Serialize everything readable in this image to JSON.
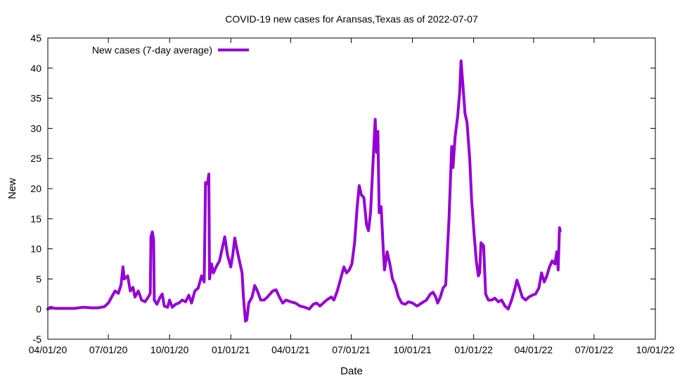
{
  "chart_data": {
    "type": "line",
    "title": "COVID-19 new cases for Aransas,Texas as of 2022-07-07",
    "xlabel": "Date",
    "ylabel": "New",
    "ylim": [
      -5,
      45
    ],
    "yticks": [
      -5,
      0,
      5,
      10,
      15,
      20,
      25,
      30,
      35,
      40,
      45
    ],
    "xlim": [
      "2020-04-01",
      "2022-10-01"
    ],
    "xticks": [
      {
        "date": "2020-04-01",
        "label": "04/01/20"
      },
      {
        "date": "2020-07-01",
        "label": "07/01/20"
      },
      {
        "date": "2020-10-01",
        "label": "10/01/20"
      },
      {
        "date": "2021-01-01",
        "label": "01/01/21"
      },
      {
        "date": "2021-04-01",
        "label": "04/01/21"
      },
      {
        "date": "2021-07-01",
        "label": "07/01/21"
      },
      {
        "date": "2021-10-01",
        "label": "10/01/21"
      },
      {
        "date": "2022-01-01",
        "label": "01/01/22"
      },
      {
        "date": "2022-04-01",
        "label": "04/01/22"
      },
      {
        "date": "2022-07-01",
        "label": "07/01/22"
      },
      {
        "date": "2022-10-01",
        "label": "10/01/22"
      }
    ],
    "grid": false,
    "legend_position": "top-left",
    "series": [
      {
        "name": "New cases (7-day average)",
        "color": "#9400d3",
        "points": [
          [
            "2020-04-01",
            0.0
          ],
          [
            "2020-04-05",
            0.3
          ],
          [
            "2020-04-12",
            0.1
          ],
          [
            "2020-04-25",
            0.1
          ],
          [
            "2020-05-10",
            0.1
          ],
          [
            "2020-05-25",
            0.3
          ],
          [
            "2020-06-05",
            0.2
          ],
          [
            "2020-06-15",
            0.2
          ],
          [
            "2020-06-25",
            0.4
          ],
          [
            "2020-07-01",
            1.0
          ],
          [
            "2020-07-06",
            2.0
          ],
          [
            "2020-07-11",
            3.0
          ],
          [
            "2020-07-16",
            2.6
          ],
          [
            "2020-07-20",
            4.0
          ],
          [
            "2020-07-23",
            7.0
          ],
          [
            "2020-07-25",
            5.0
          ],
          [
            "2020-07-30",
            5.5
          ],
          [
            "2020-08-03",
            3.0
          ],
          [
            "2020-08-07",
            3.6
          ],
          [
            "2020-08-10",
            2.0
          ],
          [
            "2020-08-15",
            3.0
          ],
          [
            "2020-08-20",
            1.5
          ],
          [
            "2020-08-25",
            1.2
          ],
          [
            "2020-08-30",
            2.0
          ],
          [
            "2020-09-02",
            2.6
          ],
          [
            "2020-09-03",
            12.0
          ],
          [
            "2020-09-05",
            12.8
          ],
          [
            "2020-09-07",
            11.5
          ],
          [
            "2020-09-08",
            1.5
          ],
          [
            "2020-09-12",
            0.8
          ],
          [
            "2020-09-17",
            2.0
          ],
          [
            "2020-09-20",
            2.5
          ],
          [
            "2020-09-23",
            0.5
          ],
          [
            "2020-09-28",
            0.3
          ],
          [
            "2020-10-01",
            1.5
          ],
          [
            "2020-10-05",
            0.3
          ],
          [
            "2020-10-10",
            0.8
          ],
          [
            "2020-10-15",
            1.0
          ],
          [
            "2020-10-20",
            1.5
          ],
          [
            "2020-10-25",
            1.2
          ],
          [
            "2020-10-30",
            2.3
          ],
          [
            "2020-11-03",
            1.0
          ],
          [
            "2020-11-08",
            3.0
          ],
          [
            "2020-11-13",
            3.5
          ],
          [
            "2020-11-18",
            5.5
          ],
          [
            "2020-11-22",
            4.5
          ],
          [
            "2020-11-24",
            21.0
          ],
          [
            "2020-11-27",
            20.8
          ],
          [
            "2020-11-29",
            22.4
          ],
          [
            "2020-11-30",
            5.0
          ],
          [
            "2020-12-03",
            7.5
          ],
          [
            "2020-12-06",
            6.0
          ],
          [
            "2020-12-10",
            7.0
          ],
          [
            "2020-12-15",
            8.0
          ],
          [
            "2020-12-19",
            10.0
          ],
          [
            "2020-12-23",
            12.0
          ],
          [
            "2020-12-27",
            9.0
          ],
          [
            "2021-01-01",
            7.0
          ],
          [
            "2021-01-04",
            9.0
          ],
          [
            "2021-01-07",
            11.8
          ],
          [
            "2021-01-10",
            10.0
          ],
          [
            "2021-01-14",
            8.0
          ],
          [
            "2021-01-18",
            6.0
          ],
          [
            "2021-01-20",
            2.0
          ],
          [
            "2021-01-23",
            -2.0
          ],
          [
            "2021-01-25",
            -1.8
          ],
          [
            "2021-01-28",
            1.0
          ],
          [
            "2021-02-02",
            2.0
          ],
          [
            "2021-02-06",
            3.9
          ],
          [
            "2021-02-10",
            3.0
          ],
          [
            "2021-02-15",
            1.5
          ],
          [
            "2021-02-20",
            1.5
          ],
          [
            "2021-02-25",
            2.0
          ],
          [
            "2021-03-01",
            2.5
          ],
          [
            "2021-03-05",
            3.0
          ],
          [
            "2021-03-10",
            3.2
          ],
          [
            "2021-03-15",
            2.0
          ],
          [
            "2021-03-20",
            1.0
          ],
          [
            "2021-03-25",
            1.5
          ],
          [
            "2021-04-01",
            1.2
          ],
          [
            "2021-04-08",
            1.0
          ],
          [
            "2021-04-15",
            0.5
          ],
          [
            "2021-04-22",
            0.3
          ],
          [
            "2021-04-29",
            0.0
          ],
          [
            "2021-05-05",
            0.8
          ],
          [
            "2021-05-10",
            1.0
          ],
          [
            "2021-05-15",
            0.5
          ],
          [
            "2021-05-20",
            1.0
          ],
          [
            "2021-05-25",
            1.5
          ],
          [
            "2021-06-01",
            2.0
          ],
          [
            "2021-06-05",
            1.5
          ],
          [
            "2021-06-10",
            3.0
          ],
          [
            "2021-06-15",
            5.0
          ],
          [
            "2021-06-20",
            7.0
          ],
          [
            "2021-06-24",
            6.0
          ],
          [
            "2021-06-28",
            6.5
          ],
          [
            "2021-07-02",
            7.5
          ],
          [
            "2021-07-06",
            11.0
          ],
          [
            "2021-07-10",
            17.0
          ],
          [
            "2021-07-13",
            20.5
          ],
          [
            "2021-07-16",
            19.0
          ],
          [
            "2021-07-20",
            18.5
          ],
          [
            "2021-07-24",
            14.0
          ],
          [
            "2021-07-27",
            13.0
          ],
          [
            "2021-07-30",
            16.0
          ],
          [
            "2021-08-03",
            25.0
          ],
          [
            "2021-08-06",
            31.5
          ],
          [
            "2021-08-08",
            26.0
          ],
          [
            "2021-08-10",
            29.5
          ],
          [
            "2021-08-12",
            16.0
          ],
          [
            "2021-08-15",
            17.0
          ],
          [
            "2021-08-18",
            10.0
          ],
          [
            "2021-08-20",
            6.5
          ],
          [
            "2021-08-24",
            9.5
          ],
          [
            "2021-08-28",
            7.5
          ],
          [
            "2021-09-01",
            5.0
          ],
          [
            "2021-09-05",
            4.0
          ],
          [
            "2021-09-10",
            2.0
          ],
          [
            "2021-09-15",
            1.0
          ],
          [
            "2021-09-20",
            0.8
          ],
          [
            "2021-09-25",
            1.2
          ],
          [
            "2021-10-01",
            1.0
          ],
          [
            "2021-10-08",
            0.5
          ],
          [
            "2021-10-15",
            1.0
          ],
          [
            "2021-10-22",
            1.5
          ],
          [
            "2021-10-28",
            2.5
          ],
          [
            "2021-11-01",
            2.8
          ],
          [
            "2021-11-05",
            2.0
          ],
          [
            "2021-11-08",
            1.0
          ],
          [
            "2021-11-12",
            2.0
          ],
          [
            "2021-11-16",
            3.5
          ],
          [
            "2021-11-20",
            4.0
          ],
          [
            "2021-11-25",
            15.0
          ],
          [
            "2021-11-29",
            27.0
          ],
          [
            "2021-12-01",
            23.5
          ],
          [
            "2021-12-04",
            28.5
          ],
          [
            "2021-12-08",
            32.0
          ],
          [
            "2021-12-11",
            36.0
          ],
          [
            "2021-12-13",
            41.2
          ],
          [
            "2021-12-16",
            37.0
          ],
          [
            "2021-12-19",
            32.5
          ],
          [
            "2021-12-22",
            31.0
          ],
          [
            "2021-12-26",
            25.0
          ],
          [
            "2021-12-29",
            18.0
          ],
          [
            "2022-01-02",
            12.0
          ],
          [
            "2022-01-05",
            8.0
          ],
          [
            "2022-01-08",
            5.5
          ],
          [
            "2022-01-10",
            6.0
          ],
          [
            "2022-01-12",
            11.0
          ],
          [
            "2022-01-16",
            10.5
          ],
          [
            "2022-01-19",
            2.5
          ],
          [
            "2022-01-23",
            1.5
          ],
          [
            "2022-01-28",
            1.5
          ],
          [
            "2022-02-02",
            1.8
          ],
          [
            "2022-02-07",
            1.2
          ],
          [
            "2022-02-12",
            1.5
          ],
          [
            "2022-02-17",
            0.5
          ],
          [
            "2022-02-22",
            0.0
          ],
          [
            "2022-02-27",
            1.5
          ],
          [
            "2022-03-03",
            3.0
          ],
          [
            "2022-03-07",
            4.8
          ],
          [
            "2022-03-11",
            3.5
          ],
          [
            "2022-03-15",
            2.0
          ],
          [
            "2022-03-20",
            1.5
          ],
          [
            "2022-03-25",
            2.0
          ],
          [
            "2022-03-30",
            2.3
          ],
          [
            "2022-04-04",
            2.5
          ],
          [
            "2022-04-09",
            3.5
          ],
          [
            "2022-04-13",
            6.0
          ],
          [
            "2022-04-17",
            4.5
          ],
          [
            "2022-04-21",
            5.5
          ],
          [
            "2022-04-25",
            7.0
          ],
          [
            "2022-04-29",
            8.0
          ],
          [
            "2022-05-03",
            7.5
          ],
          [
            "2022-05-06",
            9.5
          ],
          [
            "2022-05-08",
            6.5
          ],
          [
            "2022-05-10",
            13.5
          ],
          [
            "2022-05-11",
            13.0
          ]
        ]
      }
    ]
  }
}
